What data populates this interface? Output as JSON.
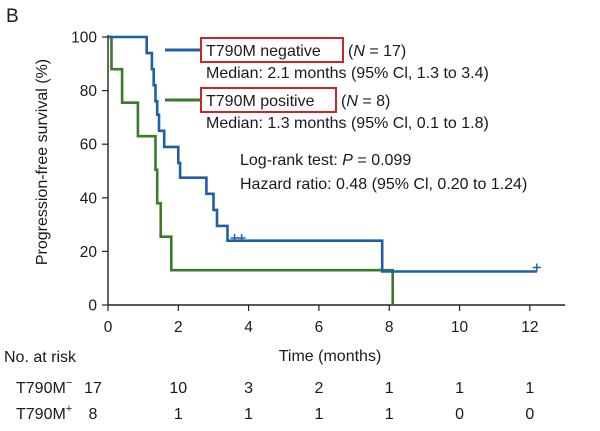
{
  "panel_label": "B",
  "chart_data": {
    "type": "line",
    "subtype": "kaplan-meier-step",
    "xlabel": "Time (months)",
    "ylabel": "Progression-free survival (%)",
    "xlim": [
      0,
      13
    ],
    "ylim": [
      0,
      100
    ],
    "xticks": [
      0,
      2,
      4,
      6,
      8,
      10,
      12
    ],
    "yticks": [
      0,
      20,
      40,
      60,
      80,
      100
    ],
    "grid": false,
    "series": [
      {
        "key": "negative",
        "name": "T790M negative",
        "n_label": "(N = 17)",
        "n_pre": "(",
        "n_var": "N",
        "n_post": " = 17)",
        "median_text": "Median: 2.1 months (95% Cl, 1.3 to 3.4)",
        "color": "#1f5fa8",
        "steps": [
          [
            0,
            100
          ],
          [
            1.1,
            94
          ],
          [
            1.25,
            88
          ],
          [
            1.3,
            82
          ],
          [
            1.35,
            76
          ],
          [
            1.4,
            71
          ],
          [
            1.45,
            65
          ],
          [
            1.6,
            59
          ],
          [
            2.0,
            53
          ],
          [
            2.05,
            47.5
          ],
          [
            2.8,
            41.5
          ],
          [
            3.0,
            35.5
          ],
          [
            3.1,
            29.5
          ],
          [
            3.4,
            24
          ],
          [
            7.8,
            12.5
          ],
          [
            12.2,
            12.5
          ]
        ],
        "censored": [
          [
            3.6,
            25
          ],
          [
            3.8,
            25
          ],
          [
            12.2,
            14
          ]
        ]
      },
      {
        "key": "positive",
        "name": "T790M positive",
        "n_label": "(N = 8)",
        "n_pre": "(",
        "n_var": "N",
        "n_post": " = 8)",
        "median_text": "Median: 1.3 months (95% Cl, 0.1 to 1.8)",
        "color": "#3a7a2a",
        "steps": [
          [
            0,
            100
          ],
          [
            0.1,
            88
          ],
          [
            0.4,
            75.5
          ],
          [
            0.85,
            63
          ],
          [
            1.35,
            50.5
          ],
          [
            1.4,
            38
          ],
          [
            1.5,
            25.5
          ],
          [
            1.8,
            13
          ],
          [
            8.1,
            0
          ]
        ],
        "censored": []
      }
    ],
    "annotations": [
      {
        "pre": "Log-rank test: ",
        "var": "P",
        "post": " = 0.099"
      },
      {
        "pre": "Hazard ratio: 0.48 (95% Cl, 0.20 to 1.24)",
        "var": "",
        "post": ""
      }
    ],
    "risk_table": {
      "title": "No. at risk",
      "times": [
        0,
        2,
        4,
        6,
        8,
        10,
        12
      ],
      "rows": [
        {
          "label": "T790M",
          "sup": "−",
          "counts": [
            17,
            10,
            3,
            2,
            1,
            1,
            1
          ]
        },
        {
          "label": "T790M",
          "sup": "+",
          "counts": [
            8,
            1,
            1,
            1,
            1,
            0,
            0
          ]
        }
      ]
    }
  }
}
